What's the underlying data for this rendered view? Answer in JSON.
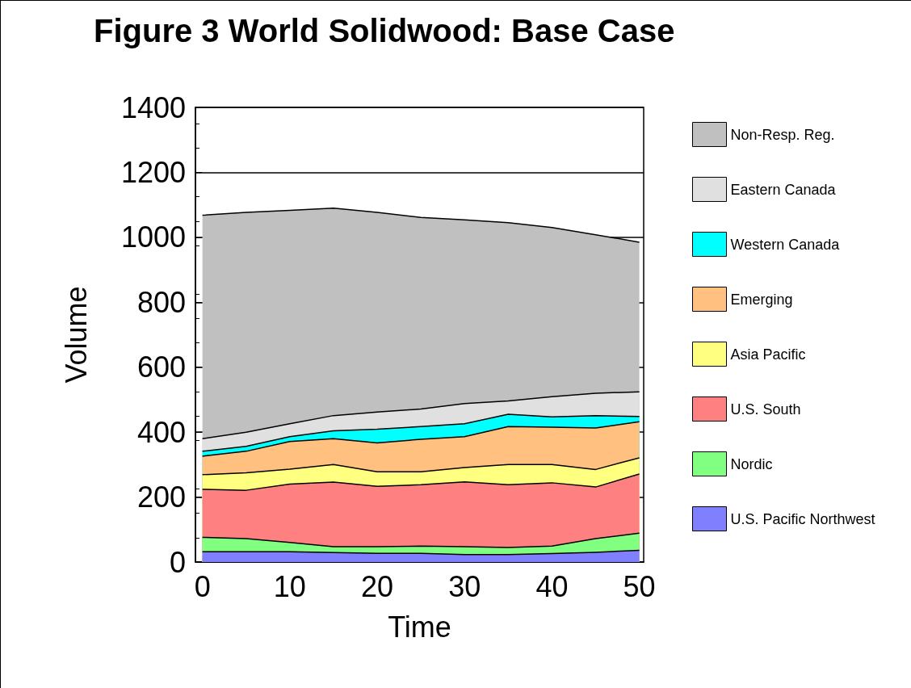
{
  "chart_data": {
    "type": "area",
    "title": "Figure 3 World Solidwood: Base Case",
    "xlabel": "Time",
    "ylabel": "Volume",
    "stacked": true,
    "x": [
      0,
      5,
      10,
      15,
      20,
      25,
      30,
      35,
      40,
      45,
      50
    ],
    "series": [
      {
        "name": "U.S. Pacific Northwest",
        "color": "#8080ff",
        "values": [
          32,
          32,
          32,
          29,
          27,
          27,
          23,
          23,
          26,
          30,
          36
        ]
      },
      {
        "name": "Nordic",
        "color": "#80ff80",
        "values": [
          44,
          40,
          28,
          18,
          20,
          22,
          24,
          22,
          23,
          42,
          53
        ]
      },
      {
        "name": "U.S. South",
        "color": "#ff8080",
        "values": [
          148,
          149,
          180,
          199,
          186,
          189,
          200,
          193,
          195,
          159,
          182
        ]
      },
      {
        "name": "Asia Pacific",
        "color": "#ffff80",
        "values": [
          45,
          54,
          46,
          54,
          45,
          40,
          44,
          62,
          56,
          54,
          50
        ]
      },
      {
        "name": "Emerging",
        "color": "#ffc080",
        "values": [
          57,
          66,
          85,
          80,
          89,
          100,
          95,
          117,
          115,
          128,
          111
        ]
      },
      {
        "name": "Western Canada",
        "color": "#00ffff",
        "values": [
          15,
          15,
          15,
          24,
          42,
          39,
          40,
          38,
          32,
          38,
          16
        ]
      },
      {
        "name": "Eastern Canada",
        "color": "#e0e0e0",
        "values": [
          39,
          44,
          40,
          47,
          53,
          54,
          62,
          41,
          62,
          69,
          76
        ]
      },
      {
        "name": "Non-Resp. Reg.",
        "color": "#c0c0c0",
        "values": [
          688,
          677,
          657,
          639,
          615,
          590,
          566,
          549,
          521,
          488,
          461
        ]
      }
    ],
    "xlim": [
      -0.8,
      50.5
    ],
    "xticks": [
      0,
      10,
      20,
      30,
      40,
      50
    ],
    "ylim": [
      0,
      1400
    ],
    "yticks": [
      0,
      200,
      400,
      600,
      800,
      1000,
      1200,
      1400
    ],
    "grid": "y",
    "legend": "right",
    "marker": "none",
    "line_style": "solid"
  }
}
